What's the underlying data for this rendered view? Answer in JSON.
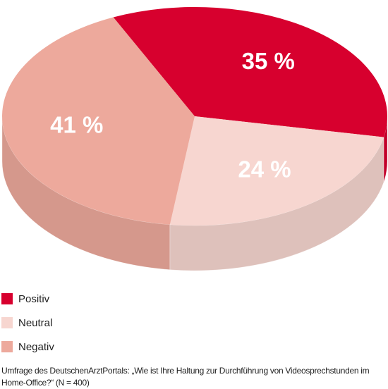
{
  "chart_data": {
    "type": "pie3d",
    "categories": [
      "Positiv",
      "Neutral",
      "Negativ"
    ],
    "values": [
      35,
      24,
      41
    ],
    "value_labels": [
      "35 %",
      "24 %",
      "41 %"
    ],
    "colors": [
      "#d7002e",
      "#f7d6d0",
      "#eda99c"
    ],
    "source": "Umfrage des DeutschenArztPortals: „Wie ist Ihre Haltung zur Durchführung von Videosprechstunden im Home-Office?“ (N = 400)"
  }
}
